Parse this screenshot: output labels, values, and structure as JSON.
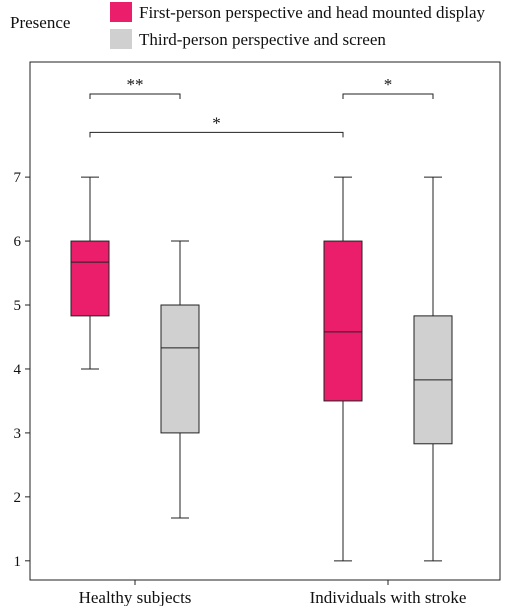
{
  "chart_data": {
    "type": "boxplot",
    "ylabel": "Presence",
    "ylim": [
      0.7,
      8.8
    ],
    "yticks": [
      1,
      2,
      3,
      4,
      5,
      6,
      7
    ],
    "categories": [
      "Healthy subjects",
      "Individuals with stroke"
    ],
    "series": [
      {
        "name": "First-person perspective and head mounted display",
        "color": "#ea1e6b",
        "boxes": [
          {
            "min": 4,
            "q1": 4.83,
            "median": 5.67,
            "q3": 6,
            "max": 7
          },
          {
            "min": 1,
            "q1": 3.5,
            "median": 4.58,
            "q3": 6,
            "max": 7
          }
        ]
      },
      {
        "name": "Third-person perspective and screen",
        "color": "#d0d0d0",
        "boxes": [
          {
            "min": 1.67,
            "q1": 3,
            "median": 4.33,
            "q3": 5,
            "max": 6
          },
          {
            "min": 1,
            "q1": 2.83,
            "median": 3.83,
            "q3": 4.83,
            "max": 7
          }
        ]
      }
    ],
    "significance": [
      {
        "label": "**",
        "from": [
          0,
          0
        ],
        "to": [
          0,
          1
        ],
        "y": 8.3
      },
      {
        "label": "*",
        "from": [
          1,
          0
        ],
        "to": [
          1,
          1
        ],
        "y": 8.3
      },
      {
        "label": "*",
        "from": [
          0,
          0
        ],
        "to": [
          1,
          0
        ],
        "y": 7.7
      }
    ],
    "legend_position": "top-right"
  }
}
